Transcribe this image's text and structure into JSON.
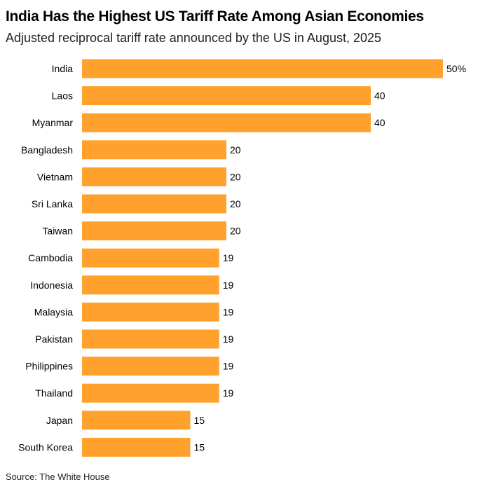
{
  "chart_data": {
    "type": "bar",
    "orientation": "horizontal",
    "title": "India Has the Highest US Tariff Rate Among Asian Economies",
    "subtitle": "Adjusted reciprocal tariff rate announced by the US in August, 2025",
    "categories": [
      "India",
      "Laos",
      "Myanmar",
      "Bangladesh",
      "Vietnam",
      "Sri Lanka",
      "Taiwan",
      "Cambodia",
      "Indonesia",
      "Malaysia",
      "Pakistan",
      "Philippines",
      "Thailand",
      "Japan",
      "South Korea"
    ],
    "values": [
      50,
      40,
      40,
      20,
      20,
      20,
      20,
      19,
      19,
      19,
      19,
      19,
      19,
      15,
      15
    ],
    "value_labels": [
      "50%",
      "40",
      "40",
      "20",
      "20",
      "20",
      "20",
      "19",
      "19",
      "19",
      "19",
      "19",
      "19",
      "15",
      "15"
    ],
    "xlim": [
      0,
      50
    ],
    "bar_color": "#ffa12c",
    "grid": false,
    "source": "Source: The White House"
  }
}
